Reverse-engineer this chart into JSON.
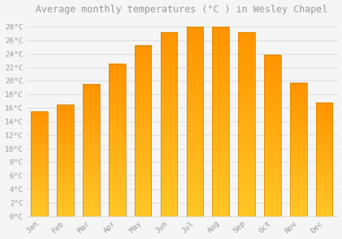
{
  "title": "Average monthly temperatures (°C ) in Wesley Chapel",
  "months": [
    "Jan",
    "Feb",
    "Mar",
    "Apr",
    "May",
    "Jun",
    "Jul",
    "Aug",
    "Sep",
    "Oct",
    "Nov",
    "Dec"
  ],
  "values": [
    15.5,
    16.5,
    19.5,
    22.5,
    25.2,
    27.2,
    28.0,
    28.0,
    27.2,
    23.8,
    19.7,
    16.8
  ],
  "bar_color_bottom": "#FFB300",
  "bar_color_top": "#FFA500",
  "bar_edge_color": "#CC8800",
  "background_color": "#F5F5F5",
  "grid_color": "#DDDDDD",
  "text_color": "#999999",
  "ylim": [
    0,
    29
  ],
  "yticks": [
    0,
    2,
    4,
    6,
    8,
    10,
    12,
    14,
    16,
    18,
    20,
    22,
    24,
    26,
    28
  ],
  "title_fontsize": 10,
  "tick_fontsize": 8,
  "bar_width": 0.65
}
